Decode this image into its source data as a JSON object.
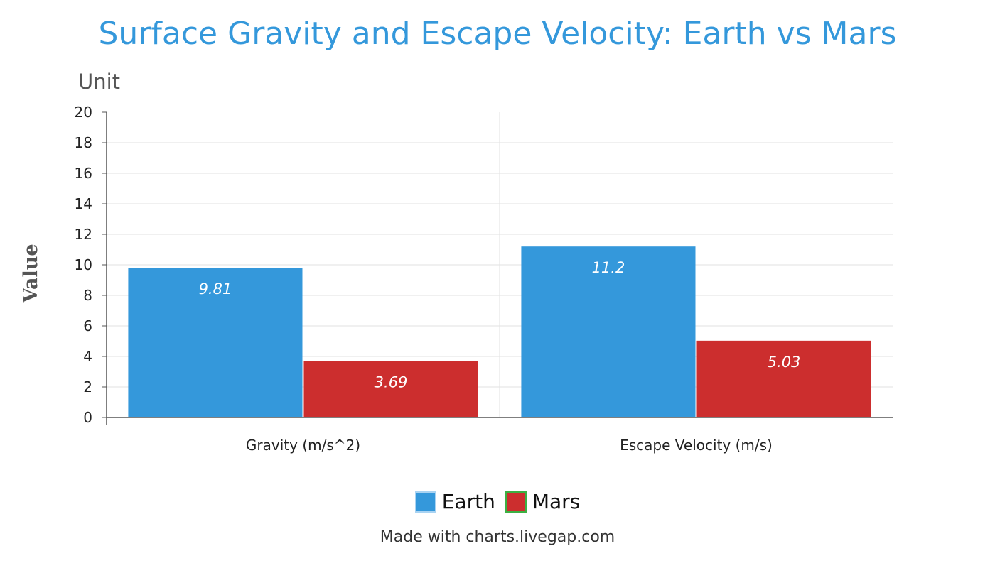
{
  "chart_data": {
    "type": "bar",
    "title": "Surface Gravity and Escape Velocity: Earth vs Mars",
    "subtitle": "Unit",
    "ylabel": "Value",
    "xlabel": "",
    "categories": [
      "Gravity (m/s^2)",
      "Escape Velocity (m/s)"
    ],
    "series": [
      {
        "name": "Earth",
        "values": [
          9.81,
          11.2
        ],
        "labels": [
          "9.81",
          "11.2"
        ],
        "color": "#3498db"
      },
      {
        "name": "Mars",
        "values": [
          3.69,
          5.03
        ],
        "labels": [
          "3.69",
          "5.03"
        ],
        "color": "#cc2e2e"
      }
    ],
    "ylim": [
      0,
      20
    ],
    "yticks": [
      "0",
      "2",
      "4",
      "6",
      "8",
      "10",
      "12",
      "14",
      "16",
      "18",
      "20"
    ],
    "grid": true,
    "legend_position": "bottom"
  },
  "footer": {
    "credit": "Made with charts.livegap.com"
  }
}
